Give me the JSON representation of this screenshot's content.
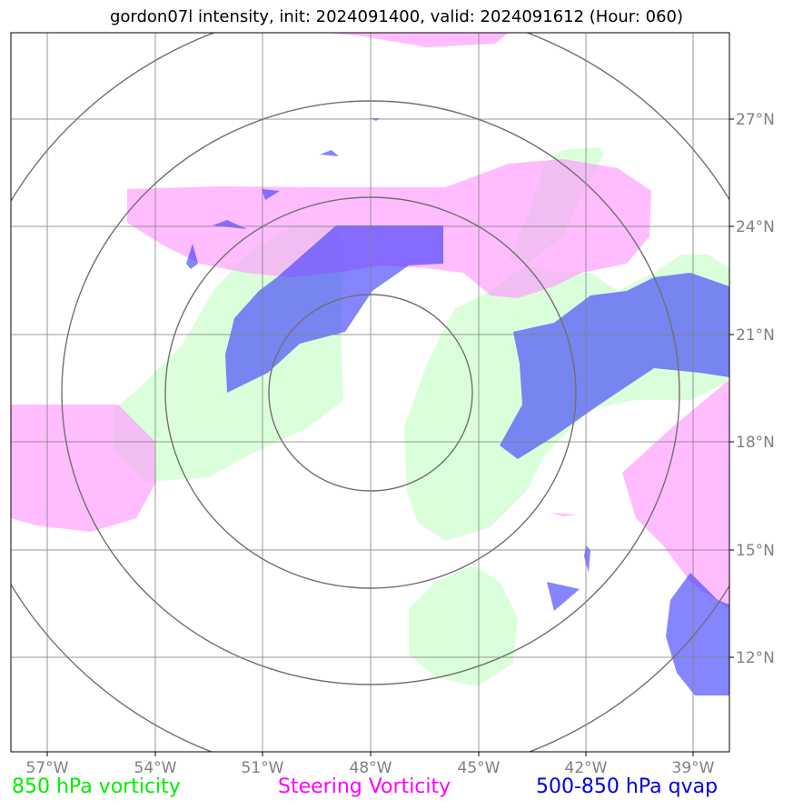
{
  "title": "gordon07l intensity, init: 2024091400, valid: 2024091612 (Hour: 060)",
  "longitude_labels": [
    "57°W",
    "54°W",
    "51°W",
    "48°W",
    "45°W",
    "42°W",
    "39°W"
  ],
  "latitude_labels": [
    "27°N",
    "24°N",
    "21°N",
    "18°N",
    "15°N",
    "12°N"
  ],
  "legend": {
    "vorticity_850": "850 hPa vorticity",
    "steering_vorticity": "Steering Vorticity",
    "qvap_500_850": "500-850 hPa qvap"
  },
  "colors": {
    "vorticity_850": "#ccffcc",
    "steering_vorticity": "#ff99ff",
    "qvap_500_850": "#3333ff",
    "legend_green": "#00ee00",
    "legend_magenta": "#ff00ff",
    "legend_blue": "#0000dd",
    "grid": "#808080"
  }
}
